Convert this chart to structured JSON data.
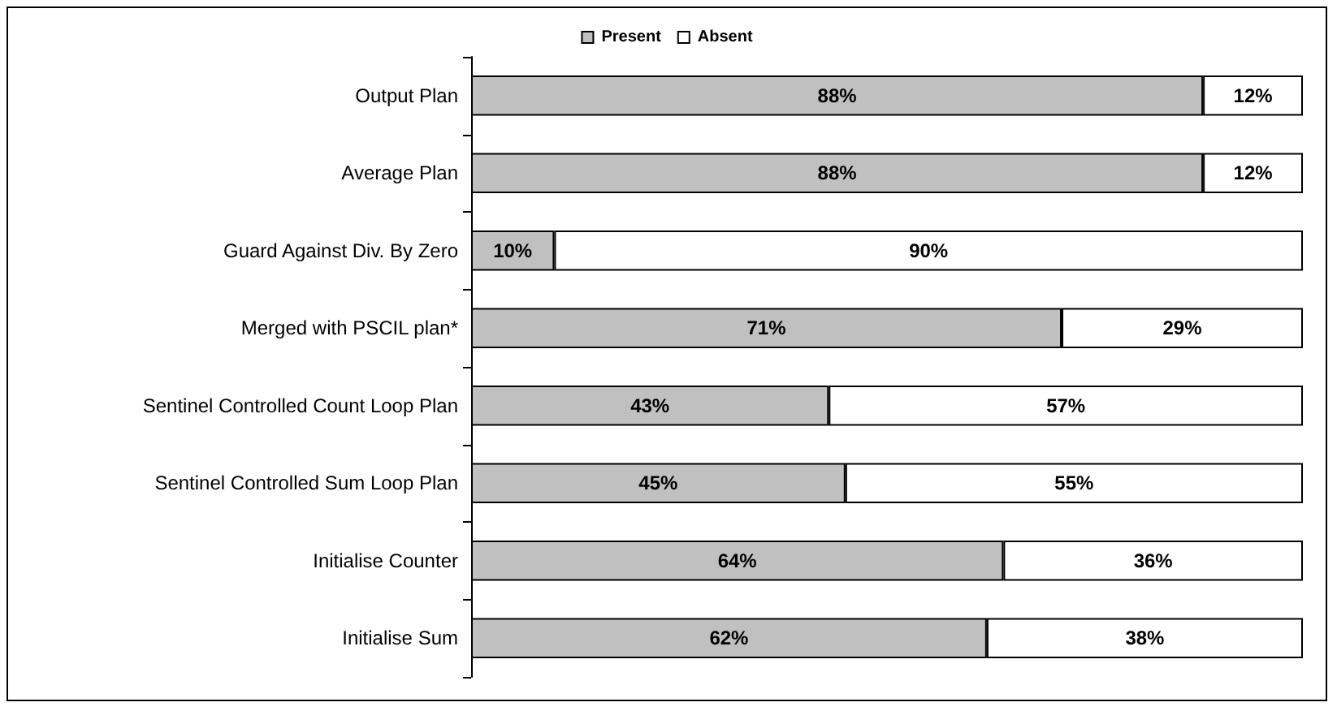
{
  "chart_data": {
    "type": "bar",
    "orientation": "horizontal",
    "stacked": true,
    "legend": "top",
    "tick_labels": "y",
    "categories": [
      "Output Plan",
      "Average Plan",
      "Guard Against Div. By Zero",
      "Merged with PSCIL plan*",
      "Sentinel Controlled Count Loop Plan",
      "Sentinel Controlled Sum Loop Plan",
      "Initialise Counter",
      "Initialise Sum"
    ],
    "series": [
      {
        "name": "Present",
        "color": "#c0c0c0",
        "values": [
          88,
          88,
          10,
          71,
          43,
          45,
          64,
          62
        ],
        "value_labels": [
          "88%",
          "88%",
          "10%",
          "71%",
          "43%",
          "45%",
          "64%",
          "62%"
        ]
      },
      {
        "name": "Absent",
        "color": "#ffffff",
        "values": [
          12,
          12,
          90,
          29,
          57,
          55,
          36,
          38
        ],
        "value_labels": [
          "12%",
          "12%",
          "90%",
          "29%",
          "57%",
          "55%",
          "36%",
          "38%"
        ]
      }
    ]
  }
}
